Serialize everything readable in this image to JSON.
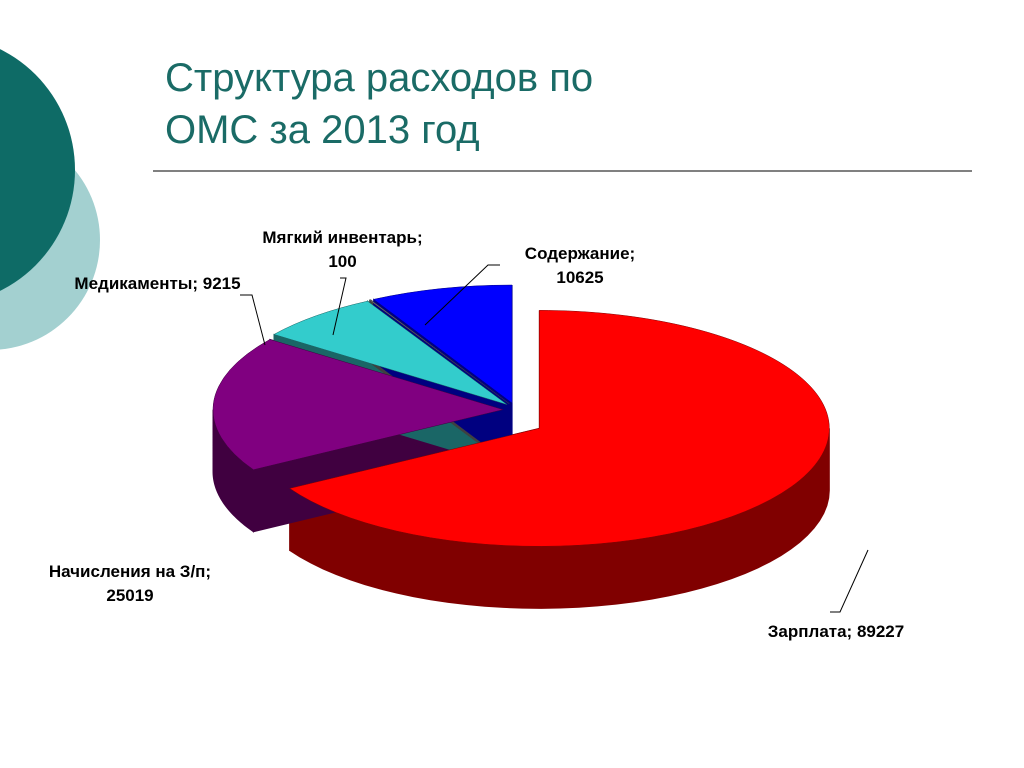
{
  "chart_data": {
    "type": "pie",
    "title": "Структура расходов по ОМС за 2013 год",
    "values": [
      89227,
      25019,
      9215,
      100,
      10625
    ],
    "value_labels": [
      "Зарплата; 89227",
      "Начисления на З/п; 25019",
      "Медикаменты; 9215",
      "Мягкий инвентарь; 100",
      "Содержание; 10625"
    ],
    "colors": [
      "#ff0000",
      "#800080",
      "#33cccc",
      "#808080",
      "#0000ff"
    ]
  }
}
